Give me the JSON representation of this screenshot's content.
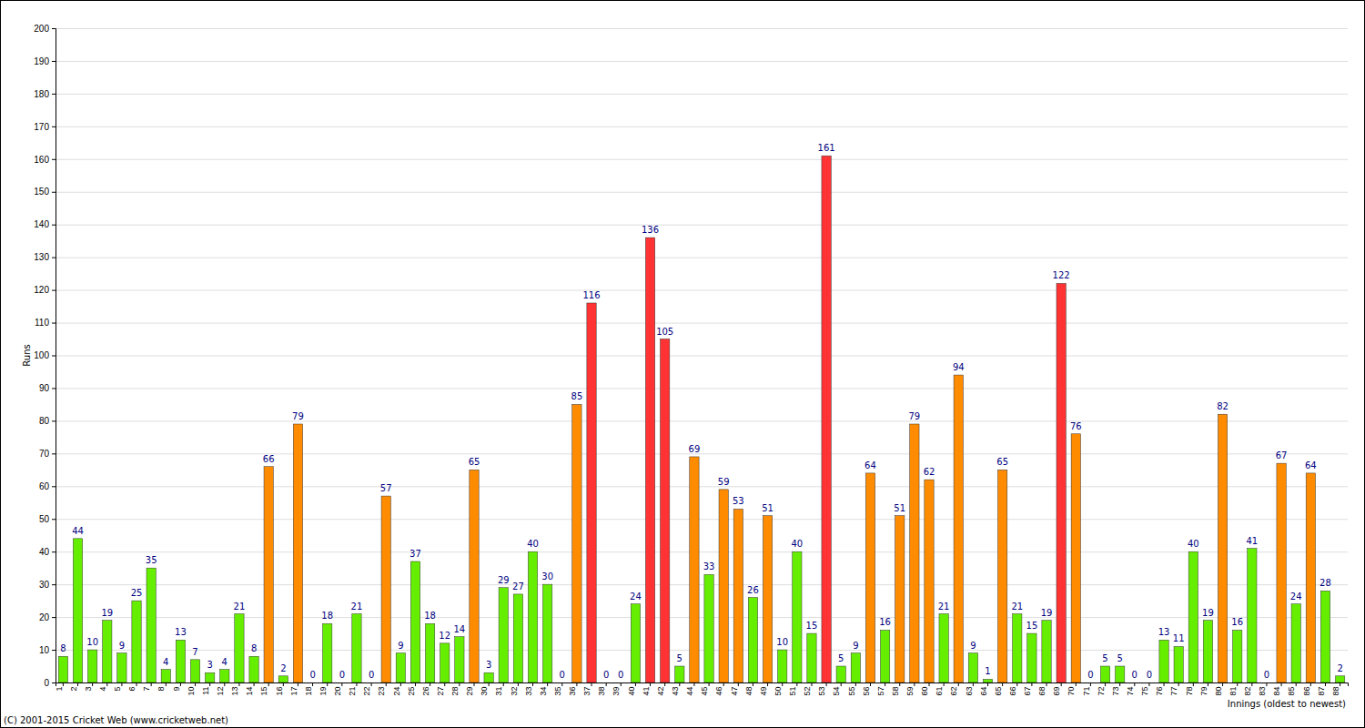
{
  "chart_data": {
    "type": "bar",
    "categories": [
      "1",
      "2",
      "3",
      "4",
      "5",
      "6",
      "7",
      "8",
      "9",
      "10",
      "11",
      "12",
      "13",
      "14",
      "15",
      "16",
      "17",
      "18",
      "19",
      "20",
      "21",
      "22",
      "23",
      "24",
      "25",
      "26",
      "27",
      "28",
      "29",
      "30",
      "31",
      "32",
      "33",
      "34",
      "35",
      "36",
      "37",
      "38",
      "39",
      "40",
      "41",
      "42",
      "43",
      "44",
      "45",
      "46",
      "47",
      "48",
      "49",
      "50",
      "51",
      "52",
      "53",
      "54",
      "55",
      "56",
      "57",
      "58",
      "59",
      "60",
      "61",
      "62",
      "63",
      "64",
      "65",
      "66",
      "67",
      "68",
      "69",
      "70",
      "71",
      "72",
      "73",
      "74",
      "75",
      "76",
      "77",
      "78",
      "79",
      "80",
      "81",
      "82",
      "83",
      "84",
      "85",
      "86",
      "87",
      "88"
    ],
    "values": [
      8,
      44,
      10,
      19,
      9,
      25,
      35,
      4,
      13,
      7,
      3,
      4,
      21,
      8,
      66,
      2,
      79,
      0,
      18,
      0,
      21,
      0,
      57,
      9,
      37,
      18,
      12,
      14,
      65,
      3,
      29,
      27,
      40,
      30,
      0,
      85,
      116,
      0,
      0,
      24,
      136,
      105,
      5,
      69,
      33,
      59,
      53,
      26,
      51,
      10,
      40,
      15,
      161,
      5,
      9,
      64,
      16,
      51,
      79,
      62,
      21,
      94,
      9,
      1,
      65,
      21,
      15,
      19,
      122,
      76,
      0,
      5,
      5,
      0,
      0,
      13,
      11,
      40,
      19,
      82,
      16,
      41,
      0,
      67,
      24,
      64,
      28,
      2
    ],
    "colors": [
      "#66ee00",
      "#66ee00",
      "#66ee00",
      "#66ee00",
      "#66ee00",
      "#66ee00",
      "#66ee00",
      "#66ee00",
      "#66ee00",
      "#66ee00",
      "#66ee00",
      "#66ee00",
      "#66ee00",
      "#66ee00",
      "#ff8c00",
      "#66ee00",
      "#ff8c00",
      "#66ee00",
      "#66ee00",
      "#66ee00",
      "#66ee00",
      "#66ee00",
      "#ff8c00",
      "#66ee00",
      "#66ee00",
      "#66ee00",
      "#66ee00",
      "#66ee00",
      "#ff8c00",
      "#66ee00",
      "#66ee00",
      "#66ee00",
      "#66ee00",
      "#66ee00",
      "#66ee00",
      "#ff8c00",
      "#ff3333",
      "#66ee00",
      "#66ee00",
      "#66ee00",
      "#ff3333",
      "#ff3333",
      "#66ee00",
      "#ff8c00",
      "#66ee00",
      "#ff8c00",
      "#ff8c00",
      "#66ee00",
      "#ff8c00",
      "#66ee00",
      "#66ee00",
      "#66ee00",
      "#ff3333",
      "#66ee00",
      "#66ee00",
      "#ff8c00",
      "#66ee00",
      "#ff8c00",
      "#ff8c00",
      "#ff8c00",
      "#66ee00",
      "#ff8c00",
      "#66ee00",
      "#66ee00",
      "#ff8c00",
      "#66ee00",
      "#66ee00",
      "#66ee00",
      "#ff3333",
      "#ff8c00",
      "#66ee00",
      "#66ee00",
      "#66ee00",
      "#66ee00",
      "#66ee00",
      "#66ee00",
      "#66ee00",
      "#66ee00",
      "#66ee00",
      "#ff8c00",
      "#66ee00",
      "#66ee00",
      "#66ee00",
      "#ff8c00",
      "#66ee00",
      "#ff8c00",
      "#66ee00",
      "#66ee00"
    ],
    "ylim": [
      0,
      200
    ],
    "yticks": [
      0,
      10,
      20,
      30,
      40,
      50,
      60,
      70,
      80,
      90,
      100,
      110,
      120,
      130,
      140,
      150,
      160,
      170,
      180,
      190,
      200
    ],
    "y_label": "Runs",
    "x_label": "Innings (oldest to newest)",
    "annotations": [
      "(C) 2001-2015 Cricket Web (www.cricketweb.net)"
    ],
    "grid": true,
    "data_labels": true
  }
}
